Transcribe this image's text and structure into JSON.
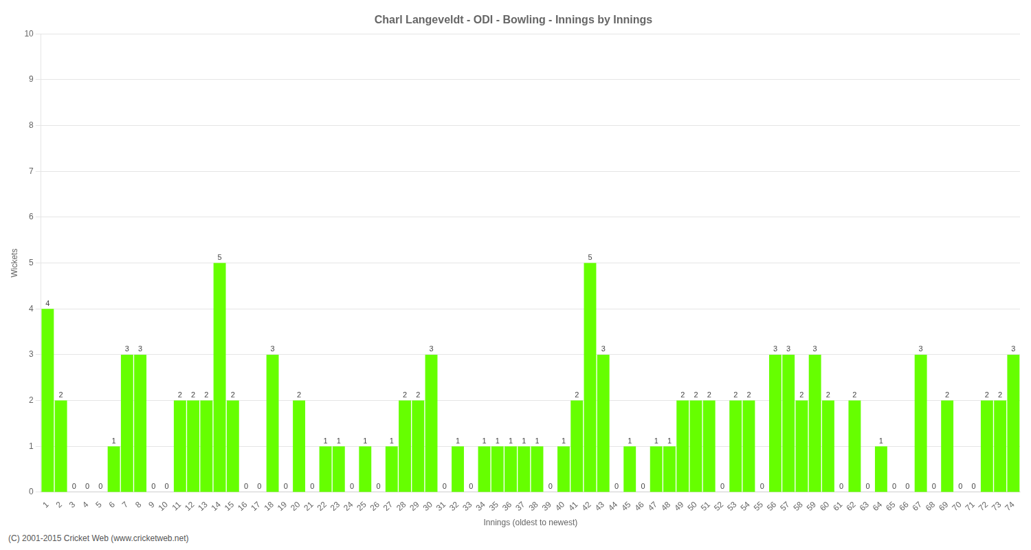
{
  "chart_data": {
    "type": "bar",
    "title": "Charl Langeveldt - ODI - Bowling - Innings by Innings",
    "xlabel": "Innings (oldest to newest)",
    "ylabel": "Wickets",
    "categories": [
      "1",
      "2",
      "3",
      "4",
      "5",
      "6",
      "7",
      "8",
      "9",
      "10",
      "11",
      "12",
      "13",
      "14",
      "15",
      "16",
      "17",
      "18",
      "19",
      "20",
      "21",
      "22",
      "23",
      "24",
      "25",
      "26",
      "27",
      "28",
      "29",
      "30",
      "31",
      "32",
      "33",
      "34",
      "35",
      "36",
      "37",
      "38",
      "39",
      "40",
      "41",
      "42",
      "43",
      "44",
      "45",
      "46",
      "47",
      "48",
      "49",
      "50",
      "51",
      "52",
      "53",
      "54",
      "55",
      "56",
      "57",
      "58",
      "59",
      "60",
      "61",
      "62",
      "63",
      "64",
      "65",
      "66",
      "67",
      "68",
      "69",
      "70",
      "71",
      "72",
      "73",
      "74"
    ],
    "values": [
      4,
      2,
      0,
      0,
      0,
      1,
      3,
      3,
      0,
      0,
      2,
      2,
      2,
      5,
      2,
      0,
      0,
      3,
      0,
      2,
      0,
      1,
      1,
      0,
      1,
      0,
      1,
      2,
      2,
      3,
      0,
      1,
      0,
      1,
      1,
      1,
      1,
      1,
      0,
      1,
      2,
      5,
      3,
      0,
      1,
      0,
      1,
      1,
      2,
      2,
      2,
      0,
      2,
      2,
      0,
      3,
      3,
      2,
      3,
      2,
      0,
      2,
      0,
      1,
      0,
      0,
      3,
      0,
      2,
      0,
      0,
      2,
      2,
      3
    ],
    "color": "#66ff00",
    "ylim": [
      0,
      10
    ],
    "yticks": [
      0,
      1,
      2,
      3,
      4,
      5,
      6,
      7,
      8,
      9,
      10
    ],
    "grid": true,
    "data_labels": true,
    "footer": "(C) 2001-2015 Cricket Web (www.cricketweb.net)"
  }
}
